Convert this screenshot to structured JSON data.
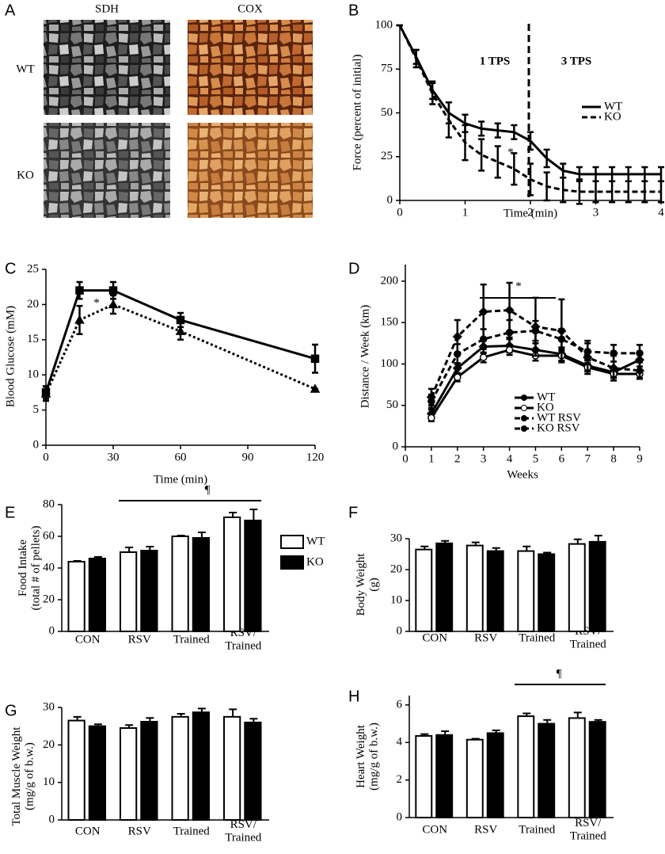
{
  "image_panel": {
    "label": "A",
    "columns": [
      "SDH",
      "COX"
    ],
    "rows": [
      "WT",
      "KO"
    ]
  },
  "chart_data": [
    {
      "type": "line",
      "label": "B",
      "xlabel": "Time (min)",
      "ylabel": "Force (percent of initial)",
      "x": [
        0,
        0.25,
        0.5,
        0.75,
        1,
        1.25,
        1.5,
        1.75,
        2,
        2.25,
        2.5,
        2.75,
        3,
        3.25,
        3.5,
        3.75,
        4
      ],
      "xlim": [
        0,
        4
      ],
      "xticks": [
        0,
        1,
        2,
        3,
        4
      ],
      "ylim": [
        0,
        100
      ],
      "yticks": [
        0,
        25,
        50,
        75,
        100
      ],
      "annotations": [
        "1 TPS",
        "3 TPS",
        "*"
      ],
      "series": [
        {
          "name": "WT",
          "color": "#000000",
          "line_style": "solid",
          "marker": "none",
          "values": [
            100,
            82,
            63,
            50,
            44,
            41,
            40,
            39,
            34,
            24,
            17,
            15,
            15,
            15,
            15,
            15,
            15
          ],
          "errors": [
            0,
            4,
            5,
            6,
            5,
            4,
            4,
            4,
            5,
            5,
            4,
            4,
            4,
            4,
            4,
            4,
            4
          ]
        },
        {
          "name": "KO",
          "color": "#000000",
          "line_style": "dashed",
          "marker": "none",
          "values": [
            100,
            81,
            61,
            46,
            33,
            26,
            22,
            18,
            12,
            8,
            6,
            5,
            5,
            5,
            5,
            5,
            5
          ],
          "errors": [
            0,
            5,
            6,
            10,
            10,
            9,
            9,
            9,
            9,
            8,
            7,
            7,
            6,
            6,
            6,
            6,
            6
          ]
        }
      ]
    },
    {
      "type": "line",
      "label": "C",
      "xlabel": "Time (min)",
      "ylabel": "Blood Glucose (mM)",
      "x": [
        0,
        15,
        30,
        60,
        120
      ],
      "xlim": [
        0,
        120
      ],
      "xticks": [
        0,
        30,
        60,
        90,
        120
      ],
      "ylim": [
        0,
        25
      ],
      "yticks": [
        0,
        5,
        10,
        15,
        20,
        25
      ],
      "annotations": [
        "*"
      ],
      "series": [
        {
          "color": "#000000",
          "line_style": "solid",
          "marker": "square",
          "values": [
            7.5,
            22,
            22,
            17.8,
            12.3
          ],
          "errors": [
            0.9,
            1.2,
            1.2,
            1,
            2
          ]
        },
        {
          "color": "#000000",
          "line_style": "dotted",
          "marker": "triangle",
          "values": [
            7.3,
            17.8,
            20,
            16.2,
            8
          ],
          "errors": [
            1,
            2,
            1.3,
            1.2,
            0
          ]
        }
      ]
    },
    {
      "type": "line",
      "label": "D",
      "xlabel": "Weeks",
      "ylabel": "Distance / Week (km)",
      "x": [
        1,
        2,
        3,
        4,
        5,
        6,
        7,
        8,
        9
      ],
      "xlim": [
        0,
        9
      ],
      "xticks": [
        0,
        1,
        2,
        3,
        4,
        5,
        6,
        7,
        8,
        9
      ],
      "ylim": [
        0,
        220
      ],
      "yticks": [
        0,
        50,
        100,
        150,
        200
      ],
      "annotations": [
        "*"
      ],
      "series": [
        {
          "name": "WT",
          "color": "#000000",
          "line_style": "solid",
          "marker": "diamond",
          "values": [
            40,
            95,
            121,
            122,
            117,
            112,
            98,
            90,
            105
          ],
          "errors": [
            5,
            6,
            8,
            8,
            8,
            8,
            6,
            6,
            8
          ]
        },
        {
          "name": "KO",
          "color": "#000000",
          "line_style": "solid",
          "marker": "open-circle",
          "values": [
            35,
            84,
            108,
            117,
            110,
            110,
            96,
            88,
            88
          ],
          "errors": [
            4,
            5,
            6,
            6,
            6,
            6,
            5,
            5,
            5
          ]
        },
        {
          "name": "WT RSV",
          "color": "#000000",
          "line_style": "dashed",
          "marker": "diamond",
          "values": [
            60,
            133,
            163,
            165,
            145,
            140,
            108,
            95,
            92
          ],
          "errors": [
            10,
            20,
            33,
            33,
            35,
            38,
            20,
            15,
            10
          ]
        },
        {
          "name": "KO RSV",
          "color": "#000000",
          "line_style": "dashed",
          "marker": "circle",
          "values": [
            55,
            112,
            130,
            138,
            140,
            130,
            115,
            113,
            113
          ],
          "errors": [
            8,
            12,
            12,
            15,
            12,
            12,
            10,
            10,
            10
          ]
        }
      ]
    },
    {
      "type": "bar",
      "label": "E",
      "ylabel": "Food Intake\n(total # of pellets)",
      "categories": [
        "CON",
        "RSV",
        "Trained",
        "RSV/\nTrained"
      ],
      "ylim": [
        0,
        80
      ],
      "yticks": [
        0,
        20,
        40,
        60,
        80
      ],
      "annotations": [
        "¶"
      ],
      "series": [
        {
          "name": "WT",
          "color": "#ffffff",
          "values": [
            44,
            50,
            60,
            72
          ],
          "errors": [
            0.5,
            3,
            0.5,
            3
          ]
        },
        {
          "name": "KO",
          "color": "#000000",
          "values": [
            46,
            51,
            59,
            70
          ],
          "errors": [
            1,
            2.5,
            3.5,
            7
          ]
        }
      ]
    },
    {
      "type": "bar",
      "label": "F",
      "ylabel": "Body Weight\n(g)",
      "categories": [
        "CON",
        "RSV",
        "Trained",
        "RSV/\nTrained"
      ],
      "ylim": [
        0,
        30
      ],
      "yticks": [
        0,
        10,
        20,
        30
      ],
      "series": [
        {
          "color": "#ffffff",
          "values": [
            26.5,
            27.8,
            26,
            28.3
          ],
          "errors": [
            1,
            1,
            1.5,
            1.5
          ]
        },
        {
          "color": "#000000",
          "values": [
            28.5,
            26,
            25,
            29
          ],
          "errors": [
            0.8,
            1,
            0.5,
            2
          ]
        }
      ]
    },
    {
      "type": "bar",
      "label": "G",
      "ylabel": "Total Muscle Weight\n(mg/g of b.w.)",
      "categories": [
        "CON",
        "RSV",
        "Trained",
        "RSV/\nTrained"
      ],
      "ylim": [
        0,
        30
      ],
      "yticks": [
        0,
        10,
        20,
        30
      ],
      "series": [
        {
          "color": "#ffffff",
          "values": [
            26.5,
            24.5,
            27.5,
            27.5
          ],
          "errors": [
            1,
            0.8,
            0.8,
            2
          ]
        },
        {
          "color": "#000000",
          "values": [
            25,
            26.2,
            28.7,
            26
          ],
          "errors": [
            0.5,
            1,
            1,
            1
          ]
        }
      ]
    },
    {
      "type": "bar",
      "label": "H",
      "ylabel": "Heart Weight\n(mg/g of b.w.)",
      "categories": [
        "CON",
        "RSV",
        "Trained",
        "RSV/\nTrained"
      ],
      "ylim": [
        0,
        6.5
      ],
      "yticks": [
        0,
        2,
        4,
        6
      ],
      "annotations": [
        "¶"
      ],
      "series": [
        {
          "color": "#ffffff",
          "values": [
            4.35,
            4.15,
            5.4,
            5.3
          ],
          "errors": [
            0.1,
            0.05,
            0.15,
            0.3
          ]
        },
        {
          "color": "#000000",
          "values": [
            4.4,
            4.5,
            5,
            5.1
          ],
          "errors": [
            0.2,
            0.15,
            0.2,
            0.1
          ]
        }
      ]
    }
  ]
}
